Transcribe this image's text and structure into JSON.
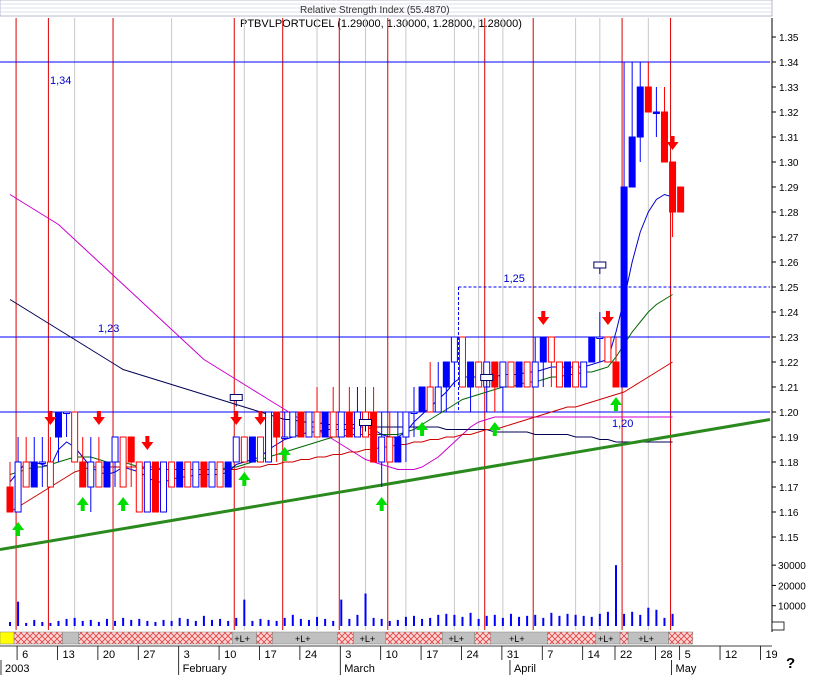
{
  "header": {
    "indicator_title": "Relative Strength Index (55.4870)",
    "symbol_line": "PTBVLPORTUCEL (1.29000, 1.30000, 1.28000, 1.28000)"
  },
  "help_glyph": "?",
  "chart_data": {
    "type": "candlestick",
    "symbol": "PTBVLPORTUCEL",
    "y_price_ticks": [
      "1.35",
      "1.34",
      "1.33",
      "1.32",
      "1.31",
      "1.30",
      "1.29",
      "1.28",
      "1.27",
      "1.26",
      "1.25",
      "1.24",
      "1.23",
      "1.22",
      "1.21",
      "1.20",
      "1.19",
      "1.18",
      "1.17",
      "1.16",
      "1.15"
    ],
    "y_volume_ticks": [
      "30000",
      "20000",
      "10000"
    ],
    "price_ylim": [
      1.14,
      1.36
    ],
    "volume_ylim": [
      0,
      35000
    ],
    "x_day_labels": [
      {
        "i": 1,
        "t": "6"
      },
      {
        "i": 6,
        "t": "13"
      },
      {
        "i": 11,
        "t": "20"
      },
      {
        "i": 16,
        "t": "27"
      },
      {
        "i": 21,
        "t": "3"
      },
      {
        "i": 26,
        "t": "10"
      },
      {
        "i": 31,
        "t": "17"
      },
      {
        "i": 36,
        "t": "24"
      },
      {
        "i": 41,
        "t": "3"
      },
      {
        "i": 46,
        "t": "10"
      },
      {
        "i": 51,
        "t": "17"
      },
      {
        "i": 56,
        "t": "24"
      },
      {
        "i": 61,
        "t": "31"
      },
      {
        "i": 66,
        "t": "7"
      },
      {
        "i": 71,
        "t": "14"
      },
      {
        "i": 75,
        "t": "22"
      },
      {
        "i": 80,
        "t": "28"
      },
      {
        "i": 83,
        "t": "5"
      },
      {
        "i": 88,
        "t": "12"
      },
      {
        "i": 93,
        "t": "19"
      }
    ],
    "x_month_labels": [
      {
        "i": 0,
        "t": "2003"
      },
      {
        "i": 21,
        "t": "February"
      },
      {
        "i": 41,
        "t": "March"
      },
      {
        "i": 62,
        "t": "April"
      },
      {
        "i": 82,
        "t": "May"
      }
    ],
    "horizontal_levels": [
      {
        "value": 1.34,
        "label": "1,34"
      },
      {
        "value": 1.23,
        "label": "1,23"
      },
      {
        "value": 1.2,
        "label": "1,20"
      }
    ],
    "resistance_box": {
      "value": 1.25,
      "label": "1,25",
      "from_index": 56
    },
    "trendline": {
      "from": [
        0,
        1.145
      ],
      "to": [
        93,
        1.197
      ]
    },
    "candles": [
      {
        "o": 1.17,
        "h": 1.18,
        "l": 1.16,
        "c": 1.16
      },
      {
        "o": 1.16,
        "h": 1.19,
        "l": 1.16,
        "c": 1.18
      },
      {
        "o": 1.18,
        "h": 1.19,
        "l": 1.17,
        "c": 1.17
      },
      {
        "o": 1.17,
        "h": 1.19,
        "l": 1.17,
        "c": 1.18
      },
      {
        "o": 1.18,
        "h": 1.19,
        "l": 1.17,
        "c": 1.18
      },
      {
        "o": 1.18,
        "h": 1.19,
        "l": 1.17,
        "c": 1.17
      },
      {
        "o": 1.19,
        "h": 1.2,
        "l": 1.18,
        "c": 1.2
      },
      {
        "o": 1.2,
        "h": 1.2,
        "l": 1.19,
        "c": 1.2
      },
      {
        "o": 1.2,
        "h": 1.2,
        "l": 1.18,
        "c": 1.18
      },
      {
        "o": 1.18,
        "h": 1.19,
        "l": 1.17,
        "c": 1.17
      },
      {
        "o": 1.17,
        "h": 1.19,
        "l": 1.16,
        "c": 1.18
      },
      {
        "o": 1.18,
        "h": 1.19,
        "l": 1.17,
        "c": 1.17
      },
      {
        "o": 1.17,
        "h": 1.18,
        "l": 1.17,
        "c": 1.18
      },
      {
        "o": 1.18,
        "h": 1.19,
        "l": 1.17,
        "c": 1.19
      },
      {
        "o": 1.19,
        "h": 1.19,
        "l": 1.17,
        "c": 1.17
      },
      {
        "o": 1.19,
        "h": 1.19,
        "l": 1.17,
        "c": 1.18
      },
      {
        "o": 1.18,
        "h": 1.18,
        "l": 1.16,
        "c": 1.16
      },
      {
        "o": 1.16,
        "h": 1.18,
        "l": 1.16,
        "c": 1.18
      },
      {
        "o": 1.18,
        "h": 1.18,
        "l": 1.16,
        "c": 1.16
      },
      {
        "o": 1.16,
        "h": 1.18,
        "l": 1.16,
        "c": 1.18
      },
      {
        "o": 1.18,
        "h": 1.18,
        "l": 1.17,
        "c": 1.17
      },
      {
        "o": 1.17,
        "h": 1.18,
        "l": 1.17,
        "c": 1.18
      },
      {
        "o": 1.18,
        "h": 1.18,
        "l": 1.17,
        "c": 1.17
      },
      {
        "o": 1.17,
        "h": 1.18,
        "l": 1.17,
        "c": 1.18
      },
      {
        "o": 1.18,
        "h": 1.18,
        "l": 1.17,
        "c": 1.17
      },
      {
        "o": 1.17,
        "h": 1.18,
        "l": 1.17,
        "c": 1.18
      },
      {
        "o": 1.18,
        "h": 1.18,
        "l": 1.17,
        "c": 1.17
      },
      {
        "o": 1.17,
        "h": 1.18,
        "l": 1.17,
        "c": 1.18
      },
      {
        "o": 1.18,
        "h": 1.19,
        "l": 1.18,
        "c": 1.19
      },
      {
        "o": 1.19,
        "h": 1.19,
        "l": 1.18,
        "c": 1.18
      },
      {
        "o": 1.18,
        "h": 1.19,
        "l": 1.18,
        "c": 1.19
      },
      {
        "o": 1.19,
        "h": 1.19,
        "l": 1.18,
        "c": 1.18
      },
      {
        "o": 1.18,
        "h": 1.2,
        "l": 1.18,
        "c": 1.2
      },
      {
        "o": 1.2,
        "h": 1.2,
        "l": 1.18,
        "c": 1.19
      },
      {
        "o": 1.19,
        "h": 1.2,
        "l": 1.19,
        "c": 1.19
      },
      {
        "o": 1.19,
        "h": 1.2,
        "l": 1.19,
        "c": 1.2
      },
      {
        "o": 1.2,
        "h": 1.2,
        "l": 1.19,
        "c": 1.19
      },
      {
        "o": 1.19,
        "h": 1.2,
        "l": 1.19,
        "c": 1.2
      },
      {
        "o": 1.2,
        "h": 1.21,
        "l": 1.19,
        "c": 1.19
      },
      {
        "o": 1.19,
        "h": 1.2,
        "l": 1.19,
        "c": 1.2
      },
      {
        "o": 1.2,
        "h": 1.21,
        "l": 1.19,
        "c": 1.19
      },
      {
        "o": 1.19,
        "h": 1.2,
        "l": 1.19,
        "c": 1.2
      },
      {
        "o": 1.2,
        "h": 1.21,
        "l": 1.19,
        "c": 1.19
      },
      {
        "o": 1.19,
        "h": 1.21,
        "l": 1.19,
        "c": 1.2
      },
      {
        "o": 1.2,
        "h": 1.21,
        "l": 1.19,
        "c": 1.19
      },
      {
        "o": 1.2,
        "h": 1.21,
        "l": 1.18,
        "c": 1.18
      },
      {
        "o": 1.18,
        "h": 1.2,
        "l": 1.17,
        "c": 1.19
      },
      {
        "o": 1.19,
        "h": 1.2,
        "l": 1.18,
        "c": 1.18
      },
      {
        "o": 1.18,
        "h": 1.2,
        "l": 1.18,
        "c": 1.19
      },
      {
        "o": 1.19,
        "h": 1.2,
        "l": 1.18,
        "c": 1.2
      },
      {
        "o": 1.2,
        "h": 1.21,
        "l": 1.19,
        "c": 1.2
      },
      {
        "o": 1.2,
        "h": 1.21,
        "l": 1.2,
        "c": 1.21
      },
      {
        "o": 1.21,
        "h": 1.22,
        "l": 1.2,
        "c": 1.2
      },
      {
        "o": 1.2,
        "h": 1.22,
        "l": 1.2,
        "c": 1.21
      },
      {
        "o": 1.21,
        "h": 1.22,
        "l": 1.2,
        "c": 1.22
      },
      {
        "o": 1.22,
        "h": 1.23,
        "l": 1.21,
        "c": 1.23
      },
      {
        "o": 1.23,
        "h": 1.23,
        "l": 1.21,
        "c": 1.21
      },
      {
        "o": 1.21,
        "h": 1.22,
        "l": 1.2,
        "c": 1.22
      },
      {
        "o": 1.22,
        "h": 1.22,
        "l": 1.21,
        "c": 1.21
      },
      {
        "o": 1.21,
        "h": 1.22,
        "l": 1.2,
        "c": 1.22
      },
      {
        "o": 1.22,
        "h": 1.22,
        "l": 1.2,
        "c": 1.21
      },
      {
        "o": 1.21,
        "h": 1.22,
        "l": 1.2,
        "c": 1.22
      },
      {
        "o": 1.22,
        "h": 1.22,
        "l": 1.21,
        "c": 1.21
      },
      {
        "o": 1.21,
        "h": 1.22,
        "l": 1.21,
        "c": 1.22
      },
      {
        "o": 1.22,
        "h": 1.22,
        "l": 1.21,
        "c": 1.21
      },
      {
        "o": 1.21,
        "h": 1.23,
        "l": 1.21,
        "c": 1.22
      },
      {
        "o": 1.22,
        "h": 1.23,
        "l": 1.21,
        "c": 1.23
      },
      {
        "o": 1.23,
        "h": 1.23,
        "l": 1.21,
        "c": 1.22
      },
      {
        "o": 1.22,
        "h": 1.22,
        "l": 1.21,
        "c": 1.21
      },
      {
        "o": 1.21,
        "h": 1.22,
        "l": 1.21,
        "c": 1.22
      },
      {
        "o": 1.22,
        "h": 1.22,
        "l": 1.21,
        "c": 1.21
      },
      {
        "o": 1.21,
        "h": 1.22,
        "l": 1.21,
        "c": 1.22
      },
      {
        "o": 1.22,
        "h": 1.23,
        "l": 1.22,
        "c": 1.23
      },
      {
        "o": 1.23,
        "h": 1.24,
        "l": 1.22,
        "c": 1.23
      },
      {
        "o": 1.23,
        "h": 1.23,
        "l": 1.22,
        "c": 1.22
      },
      {
        "o": 1.22,
        "h": 1.23,
        "l": 1.21,
        "c": 1.21
      },
      {
        "o": 1.21,
        "h": 1.34,
        "l": 1.21,
        "c": 1.29
      },
      {
        "o": 1.29,
        "h": 1.34,
        "l": 1.29,
        "c": 1.31
      },
      {
        "o": 1.31,
        "h": 1.34,
        "l": 1.3,
        "c": 1.33
      },
      {
        "o": 1.33,
        "h": 1.34,
        "l": 1.32,
        "c": 1.32
      },
      {
        "o": 1.32,
        "h": 1.33,
        "l": 1.31,
        "c": 1.32
      },
      {
        "o": 1.32,
        "h": 1.33,
        "l": 1.3,
        "c": 1.3
      },
      {
        "o": 1.3,
        "h": 1.3,
        "l": 1.27,
        "c": 1.28
      },
      {
        "o": 1.29,
        "h": 1.29,
        "l": 1.28,
        "c": 1.28
      }
    ],
    "volume": [
      2000,
      12000,
      1500,
      3000,
      2000,
      1500,
      2500,
      3500,
      4000,
      2500,
      3000,
      2000,
      3500,
      2500,
      4000,
      3000,
      3500,
      2500,
      2000,
      3000,
      2500,
      4000,
      3500,
      2500,
      5000,
      3000,
      3500,
      2500,
      4000,
      13000,
      2500,
      3500,
      3000,
      2500,
      4000,
      5500,
      3500,
      3000,
      4500,
      3500,
      2500,
      13000,
      3500,
      5500,
      16000,
      4000,
      3500,
      2500,
      3000,
      4500,
      5000,
      3500,
      4000,
      5500,
      6000,
      5500,
      4500,
      6500,
      3500,
      5000,
      5500,
      4000,
      6000,
      4500,
      5000,
      5500,
      4000,
      6500,
      5000,
      6000,
      5500,
      5000,
      4500,
      6000,
      7000,
      30000,
      6000,
      7000,
      5500,
      9000,
      8000,
      4000,
      6000
    ],
    "sma_short": [
      1.172,
      1.176,
      1.18,
      1.18,
      1.179,
      1.178,
      1.185,
      1.188,
      1.186,
      1.182,
      1.178,
      1.176,
      1.175,
      1.176,
      1.178,
      1.177,
      1.176,
      1.174,
      1.172,
      1.172,
      1.173,
      1.174,
      1.174,
      1.175,
      1.175,
      1.175,
      1.175,
      1.176,
      1.179,
      1.18,
      1.181,
      1.182,
      1.185,
      1.187,
      1.189,
      1.19,
      1.191,
      1.192,
      1.192,
      1.193,
      1.193,
      1.193,
      1.193,
      1.194,
      1.194,
      1.193,
      1.191,
      1.19,
      1.19,
      1.192,
      1.196,
      1.199,
      1.202,
      1.205,
      1.208,
      1.212,
      1.214,
      1.214,
      1.214,
      1.213,
      1.214,
      1.215,
      1.215,
      1.215,
      1.216,
      1.216,
      1.217,
      1.218,
      1.218,
      1.218,
      1.218,
      1.218,
      1.219,
      1.22,
      1.221,
      1.232,
      1.245,
      1.26,
      1.272,
      1.28,
      1.285,
      1.287,
      1.286
    ],
    "sma_mid": [
      1.175,
      1.176,
      1.177,
      1.178,
      1.178,
      1.179,
      1.18,
      1.181,
      1.182,
      1.182,
      1.182,
      1.181,
      1.18,
      1.18,
      1.18,
      1.179,
      1.178,
      1.177,
      1.177,
      1.177,
      1.177,
      1.177,
      1.177,
      1.177,
      1.177,
      1.177,
      1.177,
      1.178,
      1.178,
      1.179,
      1.18,
      1.181,
      1.182,
      1.183,
      1.184,
      1.185,
      1.186,
      1.187,
      1.188,
      1.189,
      1.19,
      1.19,
      1.191,
      1.191,
      1.191,
      1.191,
      1.191,
      1.191,
      1.191,
      1.192,
      1.193,
      1.195,
      1.197,
      1.199,
      1.201,
      1.203,
      1.205,
      1.206,
      1.207,
      1.208,
      1.209,
      1.21,
      1.21,
      1.211,
      1.212,
      1.212,
      1.213,
      1.214,
      1.214,
      1.215,
      1.215,
      1.216,
      1.216,
      1.217,
      1.218,
      1.222,
      1.227,
      1.232,
      1.236,
      1.24,
      1.243,
      1.245,
      1.247
    ],
    "sma_long": [
      1.16,
      1.162,
      1.164,
      1.166,
      1.168,
      1.17,
      1.172,
      1.174,
      1.176,
      1.177,
      1.178,
      1.178,
      1.178,
      1.178,
      1.178,
      1.178,
      1.178,
      1.178,
      1.178,
      1.177,
      1.177,
      1.177,
      1.177,
      1.177,
      1.177,
      1.177,
      1.177,
      1.177,
      1.177,
      1.178,
      1.178,
      1.178,
      1.179,
      1.179,
      1.18,
      1.18,
      1.181,
      1.181,
      1.182,
      1.182,
      1.183,
      1.183,
      1.184,
      1.184,
      1.185,
      1.185,
      1.186,
      1.186,
      1.187,
      1.187,
      1.188,
      1.188,
      1.189,
      1.189,
      1.19,
      1.19,
      1.191,
      1.191,
      1.192,
      1.193,
      1.193,
      1.194,
      1.195,
      1.196,
      1.197,
      1.198,
      1.199,
      1.2,
      1.201,
      1.202,
      1.202,
      1.203,
      1.204,
      1.205,
      1.206,
      1.207,
      1.208,
      1.21,
      1.212,
      1.214,
      1.216,
      1.218,
      1.22
    ],
    "sma_slow": [
      1.245,
      1.243,
      1.241,
      1.239,
      1.237,
      1.235,
      1.233,
      1.231,
      1.229,
      1.227,
      1.225,
      1.223,
      1.221,
      1.219,
      1.217,
      1.216,
      1.215,
      1.214,
      1.213,
      1.212,
      1.211,
      1.21,
      1.209,
      1.208,
      1.207,
      1.206,
      1.205,
      1.204,
      1.203,
      1.202,
      1.201,
      1.2,
      1.199,
      1.198,
      1.197,
      1.197,
      1.196,
      1.196,
      1.196,
      1.195,
      1.195,
      1.195,
      1.195,
      1.195,
      1.195,
      1.194,
      1.194,
      1.194,
      1.194,
      1.194,
      1.194,
      1.194,
      1.194,
      1.194,
      1.193,
      1.193,
      1.193,
      1.193,
      1.193,
      1.193,
      1.192,
      1.192,
      1.192,
      1.192,
      1.192,
      1.191,
      1.191,
      1.191,
      1.191,
      1.191,
      1.19,
      1.19,
      1.19,
      1.189,
      1.189,
      1.188,
      1.188,
      1.188,
      1.188,
      1.188,
      1.188,
      1.188,
      1.188
    ],
    "sma_magenta": [
      1.287,
      1.285,
      1.283,
      1.281,
      1.279,
      1.277,
      1.275,
      1.272,
      1.269,
      1.266,
      1.263,
      1.26,
      1.257,
      1.254,
      1.251,
      1.248,
      1.245,
      1.242,
      1.239,
      1.236,
      1.233,
      1.23,
      1.227,
      1.224,
      1.221,
      1.219,
      1.217,
      1.215,
      1.213,
      1.211,
      1.209,
      1.207,
      1.205,
      1.203,
      1.201,
      1.199,
      1.197,
      1.195,
      1.193,
      1.191,
      1.189,
      1.187,
      1.185,
      1.183,
      1.181,
      1.18,
      1.179,
      1.178,
      1.177,
      1.177,
      1.177,
      1.178,
      1.18,
      1.182,
      1.185,
      1.188,
      1.191,
      1.194,
      1.196,
      1.197,
      1.198,
      1.198,
      1.198,
      1.198,
      1.198,
      1.198,
      1.198,
      1.198,
      1.198,
      1.198,
      1.198,
      1.198,
      1.198,
      1.198,
      1.198,
      1.198,
      1.198,
      1.198,
      1.198,
      1.198,
      1.198,
      1.198,
      1.198
    ],
    "buy_signals": [
      1,
      9,
      14,
      29,
      34,
      46,
      51,
      60,
      75
    ],
    "sell_signals": [
      5,
      11,
      17,
      28,
      31,
      66,
      74,
      82
    ],
    "event_markers": [
      {
        "i": 28,
        "v": 1.205
      },
      {
        "i": 44,
        "v": 1.195
      },
      {
        "i": 59,
        "v": 1.213
      },
      {
        "i": 73,
        "v": 1.258
      }
    ],
    "red_vertical_lines": [
      1,
      5,
      13,
      28,
      34,
      41,
      47,
      59,
      65,
      76,
      82
    ],
    "gray_vertical_lines": [
      8,
      20,
      29,
      38,
      44,
      49,
      55,
      58,
      61,
      70,
      73,
      79
    ],
    "timeline_segments": [
      {
        "from": 0,
        "to": 1,
        "kind": "yellow",
        "label": ""
      },
      {
        "from": 1,
        "to": 7,
        "kind": "hatch",
        "label": ""
      },
      {
        "from": 7,
        "to": 9,
        "kind": "gray",
        "label": ""
      },
      {
        "from": 9,
        "to": 28,
        "kind": "hatch",
        "label": ""
      },
      {
        "from": 28,
        "to": 31,
        "kind": "gray",
        "label": "+L+"
      },
      {
        "from": 31,
        "to": 33,
        "kind": "hatch",
        "label": ""
      },
      {
        "from": 33,
        "to": 41,
        "kind": "gray",
        "label": "+L+"
      },
      {
        "from": 41,
        "to": 43,
        "kind": "hatch",
        "label": ""
      },
      {
        "from": 43,
        "to": 47,
        "kind": "gray",
        "label": "+L+"
      },
      {
        "from": 47,
        "to": 54,
        "kind": "hatch",
        "label": ""
      },
      {
        "from": 54,
        "to": 58,
        "kind": "gray",
        "label": "+L+"
      },
      {
        "from": 58,
        "to": 60,
        "kind": "hatch",
        "label": ""
      },
      {
        "from": 60,
        "to": 67,
        "kind": "gray",
        "label": "+L+"
      },
      {
        "from": 67,
        "to": 73,
        "kind": "hatch",
        "label": ""
      },
      {
        "from": 73,
        "to": 76,
        "kind": "gray",
        "label": "+L+"
      },
      {
        "from": 76,
        "to": 77,
        "kind": "hatch",
        "label": ""
      },
      {
        "from": 77,
        "to": 82,
        "kind": "gray",
        "label": "+L+"
      },
      {
        "from": 82,
        "to": 85,
        "kind": "hatch",
        "label": ""
      }
    ],
    "colors": {
      "up_candle": "#0000ff",
      "down_candle": "#ff0000",
      "sma_short": "#0000cc",
      "sma_mid": "#006600",
      "sma_long": "#cc0000",
      "sma_slow": "#000055",
      "sma_magenta": "#cc00cc",
      "trendline": "#2b8a1e",
      "level_lines": "#0000ff",
      "buy_arrow": "#00dd00",
      "sell_arrow": "#ff0000"
    }
  }
}
